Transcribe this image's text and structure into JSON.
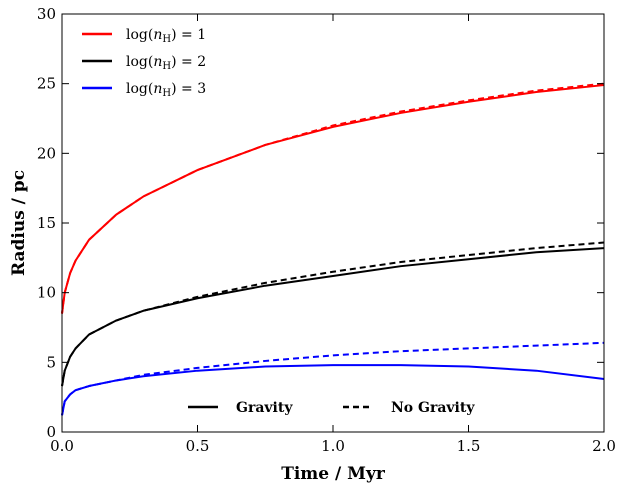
{
  "chart_data": {
    "type": "line",
    "xlabel": "Time / Myr",
    "ylabel": "Radius / pc",
    "xlim": [
      0,
      2.0
    ],
    "ylim": [
      0,
      30
    ],
    "xticks": [
      "0.0",
      "0.5",
      "1.0",
      "1.5",
      "2.0"
    ],
    "yticks": [
      "0",
      "5",
      "10",
      "15",
      "20",
      "25",
      "30"
    ],
    "grid": false,
    "density_legend": {
      "placement": "top-left",
      "entries": [
        {
          "label_prefix": "log(",
          "label_var": "n",
          "label_sub": "H",
          "label_suffix": ") = 1",
          "color": "#ff0000"
        },
        {
          "label_prefix": "log(",
          "label_var": "n",
          "label_sub": "H",
          "label_suffix": ") = 2",
          "color": "#000000"
        },
        {
          "label_prefix": "log(",
          "label_var": "n",
          "label_sub": "H",
          "label_suffix": ") = 3",
          "color": "#0000ff"
        }
      ]
    },
    "style_legend": {
      "placement": "bottom-center",
      "entries": [
        {
          "label": "Gravity",
          "dash": "solid"
        },
        {
          "label": "No Gravity",
          "dash": "dashed"
        }
      ]
    },
    "series": [
      {
        "density": 1,
        "style": "Gravity",
        "color": "#ff0000",
        "dash": "solid",
        "x": [
          0.0,
          0.01,
          0.03,
          0.05,
          0.1,
          0.2,
          0.3,
          0.5,
          0.75,
          1.0,
          1.25,
          1.5,
          1.75,
          2.0
        ],
        "y": [
          8.5,
          10.0,
          11.4,
          12.3,
          13.8,
          15.6,
          16.9,
          18.8,
          20.6,
          21.9,
          22.9,
          23.7,
          24.4,
          24.9
        ]
      },
      {
        "density": 1,
        "style": "No Gravity",
        "color": "#ff0000",
        "dash": "dashed",
        "x": [
          0.0,
          0.01,
          0.03,
          0.05,
          0.1,
          0.2,
          0.3,
          0.5,
          0.75,
          1.0,
          1.25,
          1.5,
          1.75,
          2.0
        ],
        "y": [
          8.5,
          10.0,
          11.4,
          12.3,
          13.8,
          15.6,
          16.9,
          18.8,
          20.6,
          22.0,
          23.0,
          23.8,
          24.5,
          25.0
        ]
      },
      {
        "density": 2,
        "style": "Gravity",
        "color": "#000000",
        "dash": "solid",
        "x": [
          0.0,
          0.01,
          0.03,
          0.05,
          0.1,
          0.2,
          0.3,
          0.5,
          0.75,
          1.0,
          1.25,
          1.5,
          1.75,
          2.0
        ],
        "y": [
          3.3,
          4.4,
          5.4,
          6.0,
          7.0,
          8.0,
          8.7,
          9.6,
          10.5,
          11.2,
          11.9,
          12.4,
          12.9,
          13.2
        ]
      },
      {
        "density": 2,
        "style": "No Gravity",
        "color": "#000000",
        "dash": "dashed",
        "x": [
          0.0,
          0.01,
          0.03,
          0.05,
          0.1,
          0.2,
          0.3,
          0.5,
          0.75,
          1.0,
          1.25,
          1.5,
          1.75,
          2.0
        ],
        "y": [
          3.3,
          4.4,
          5.4,
          6.0,
          7.0,
          8.0,
          8.7,
          9.7,
          10.7,
          11.5,
          12.2,
          12.7,
          13.2,
          13.6
        ]
      },
      {
        "density": 3,
        "style": "Gravity",
        "color": "#0000ff",
        "dash": "solid",
        "x": [
          0.0,
          0.01,
          0.03,
          0.05,
          0.1,
          0.2,
          0.3,
          0.5,
          0.75,
          1.0,
          1.25,
          1.5,
          1.75,
          2.0
        ],
        "y": [
          1.2,
          2.2,
          2.7,
          3.0,
          3.3,
          3.7,
          4.0,
          4.4,
          4.7,
          4.8,
          4.8,
          4.7,
          4.4,
          3.8
        ]
      },
      {
        "density": 3,
        "style": "No Gravity",
        "color": "#0000ff",
        "dash": "dashed",
        "x": [
          0.0,
          0.01,
          0.03,
          0.05,
          0.1,
          0.2,
          0.3,
          0.5,
          0.75,
          1.0,
          1.25,
          1.5,
          1.75,
          2.0
        ],
        "y": [
          1.2,
          2.2,
          2.7,
          3.0,
          3.3,
          3.7,
          4.1,
          4.6,
          5.1,
          5.5,
          5.8,
          6.0,
          6.2,
          6.4
        ]
      }
    ]
  }
}
